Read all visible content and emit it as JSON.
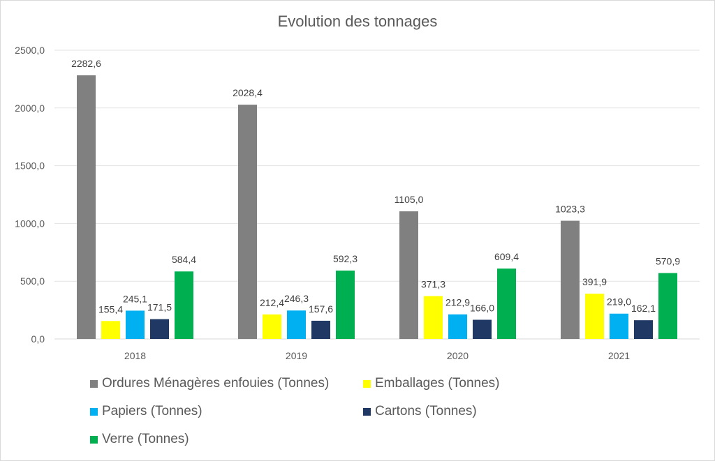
{
  "chart_data": {
    "type": "bar",
    "title": "Evolution des tonnages",
    "xlabel": "",
    "ylabel": "",
    "ylim": [
      0,
      2500
    ],
    "yticks": [
      "0,0",
      "500,0",
      "1000,0",
      "1500,0",
      "2000,0",
      "2500,0"
    ],
    "grid": true,
    "legend_position": "bottom",
    "categories": [
      "2018",
      "2019",
      "2020",
      "2021"
    ],
    "series": [
      {
        "name": "Ordures Ménagères enfouies (Tonnes)",
        "color": "#808080",
        "values": [
          2282.6,
          2028.4,
          1105.0,
          1023.3
        ],
        "labels": [
          "2282,6",
          "2028,4",
          "1105,0",
          "1023,3"
        ]
      },
      {
        "name": "Emballages (Tonnes)",
        "color": "#ffff00",
        "values": [
          155.4,
          212.4,
          371.3,
          391.9
        ],
        "labels": [
          "155,4",
          "212,4",
          "371,3",
          "391,9"
        ]
      },
      {
        "name": "Papiers (Tonnes)",
        "color": "#00b0f0",
        "values": [
          245.1,
          246.3,
          212.9,
          219.0
        ],
        "labels": [
          "245,1",
          "246,3",
          "212,9",
          "219,0"
        ]
      },
      {
        "name": "Cartons (Tonnes)",
        "color": "#1f3864",
        "values": [
          171.5,
          157.6,
          166.0,
          162.1
        ],
        "labels": [
          "171,5",
          "157,6",
          "166,0",
          "162,1"
        ]
      },
      {
        "name": "Verre (Tonnes)",
        "color": "#00b050",
        "values": [
          584.4,
          592.3,
          609.4,
          570.9
        ],
        "labels": [
          "584,4",
          "592,3",
          "609,4",
          "570,9"
        ]
      }
    ]
  }
}
